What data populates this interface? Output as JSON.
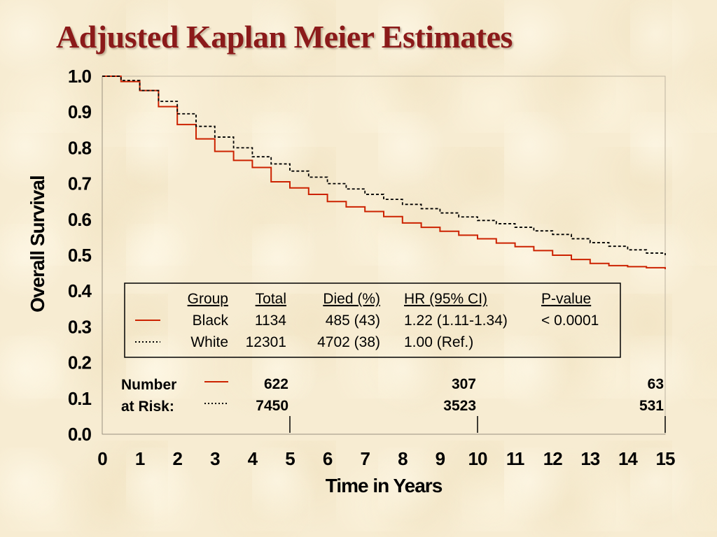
{
  "title": "Adjusted Kaplan Meier Estimates",
  "colors": {
    "black_group": "#cc2200",
    "white_group": "#000000",
    "title": "#8b1a1a"
  },
  "chart_data": {
    "type": "line",
    "title": "Adjusted Kaplan Meier Estimates",
    "xlabel": "Time in Years",
    "ylabel": "Overall Survival",
    "xlim": [
      0,
      15
    ],
    "ylim": [
      0,
      1
    ],
    "x_ticks": [
      "0",
      "1",
      "2",
      "3",
      "4",
      "5",
      "6",
      "7",
      "8",
      "9",
      "10",
      "11",
      "12",
      "13",
      "14",
      "15"
    ],
    "y_ticks": [
      "0.0",
      "0.1",
      "0.2",
      "0.3",
      "0.4",
      "0.5",
      "0.6",
      "0.7",
      "0.8",
      "0.9",
      "1.0"
    ],
    "grid": false,
    "series": [
      {
        "name": "Black",
        "style": "solid",
        "color": "#cc2200",
        "x": [
          0,
          0.5,
          1,
          1.5,
          2,
          2.5,
          3,
          3.5,
          4,
          4.5,
          5,
          5.5,
          6,
          6.5,
          7,
          7.5,
          8,
          8.5,
          9,
          9.5,
          10,
          10.5,
          11,
          11.5,
          12,
          12.5,
          13,
          13.5,
          14,
          14.5,
          15
        ],
        "y": [
          1.0,
          0.985,
          0.96,
          0.915,
          0.865,
          0.825,
          0.79,
          0.765,
          0.745,
          0.705,
          0.688,
          0.67,
          0.65,
          0.635,
          0.622,
          0.608,
          0.59,
          0.578,
          0.567,
          0.556,
          0.546,
          0.534,
          0.524,
          0.513,
          0.5,
          0.488,
          0.477,
          0.471,
          0.468,
          0.465,
          0.461
        ]
      },
      {
        "name": "White",
        "style": "dotted",
        "color": "#000000",
        "x": [
          0,
          0.5,
          1,
          1.5,
          2,
          2.5,
          3,
          3.5,
          4,
          4.5,
          5,
          5.5,
          6,
          6.5,
          7,
          7.5,
          8,
          8.5,
          9,
          9.5,
          10,
          10.5,
          11,
          11.5,
          12,
          12.5,
          13,
          13.5,
          14,
          14.5,
          15
        ],
        "y": [
          1.0,
          0.988,
          0.96,
          0.93,
          0.895,
          0.86,
          0.83,
          0.8,
          0.775,
          0.755,
          0.735,
          0.718,
          0.7,
          0.685,
          0.67,
          0.656,
          0.642,
          0.63,
          0.618,
          0.607,
          0.597,
          0.588,
          0.578,
          0.568,
          0.558,
          0.546,
          0.535,
          0.525,
          0.515,
          0.506,
          0.5
        ]
      }
    ],
    "legend_table": {
      "headers": [
        "Group",
        "Total",
        "Died (%)",
        "HR (95% CI)",
        "P-value"
      ],
      "rows": [
        {
          "group": "Black",
          "total": "1134",
          "died": "485 (43)",
          "hr": "1.22 (1.11-1.34)",
          "p": "< 0.0001",
          "line": "solid"
        },
        {
          "group": "White",
          "total": "12301",
          "died": "4702 (38)",
          "hr": "1.00 (Ref.)",
          "p": "",
          "line": "dotted"
        }
      ]
    },
    "number_at_risk": {
      "label_line1": "Number",
      "label_line2": "at Risk:",
      "times": [
        5,
        10,
        15
      ],
      "black": [
        "622",
        "307",
        "63"
      ],
      "white": [
        "7450",
        "3523",
        "531"
      ]
    }
  }
}
